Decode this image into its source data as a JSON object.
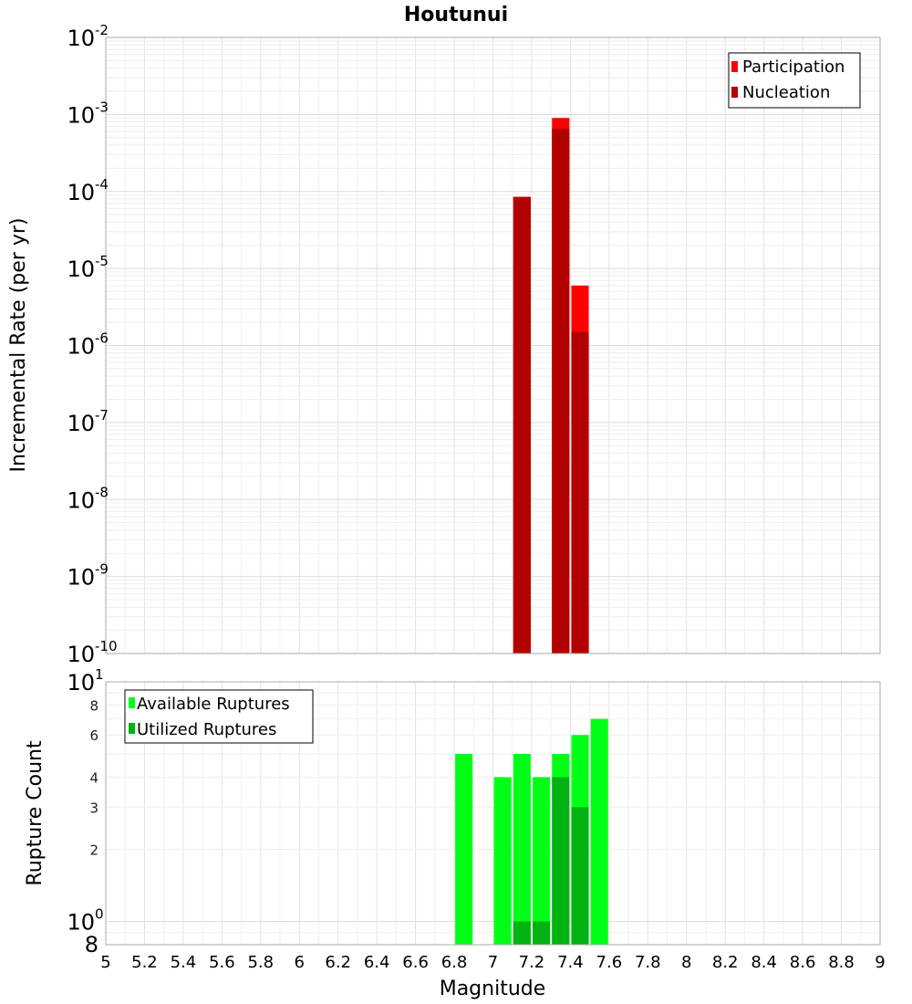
{
  "title": "Houtunui",
  "chart_data": [
    {
      "type": "bar",
      "name": "rate-panel",
      "ylabel": "Incremental Rate (per yr)",
      "yscale": "log",
      "ylim": [
        1e-10,
        0.01
      ],
      "y_tick_base": "10",
      "y_tick_exponents": [
        "-10",
        "-9",
        "-8",
        "-7",
        "-6",
        "-5",
        "-4",
        "-3",
        "-2"
      ],
      "legend_position": "top-right",
      "grid": true,
      "bar_width": 0.09,
      "series": [
        {
          "name": "Participation",
          "color": "#ff0000",
          "points": [
            {
              "x": 7.15,
              "y": 8.5e-05
            },
            {
              "x": 7.35,
              "y": 0.0009
            },
            {
              "x": 7.45,
              "y": 6e-06
            }
          ]
        },
        {
          "name": "Nucleation",
          "color": "#b30000",
          "points": [
            {
              "x": 7.15,
              "y": 8.5e-05
            },
            {
              "x": 7.35,
              "y": 0.00065
            },
            {
              "x": 7.45,
              "y": 1.5e-06
            }
          ]
        }
      ]
    },
    {
      "type": "bar",
      "name": "count-panel",
      "ylabel": "Rupture Count",
      "xlabel": "Magnitude",
      "yscale": "log",
      "ylim": [
        0.8,
        10
      ],
      "y_major_ticks": [
        {
          "value": 1,
          "base": "10",
          "exp": "0"
        },
        {
          "value": 10,
          "base": "10",
          "exp": "1"
        }
      ],
      "y_minor_ticks": [
        {
          "value": 0.8,
          "label": "8"
        },
        {
          "value": 2,
          "label": "2"
        },
        {
          "value": 3,
          "label": "3"
        },
        {
          "value": 4,
          "label": "4"
        },
        {
          "value": 6,
          "label": "6"
        },
        {
          "value": 8,
          "label": "8"
        }
      ],
      "xlim": [
        5,
        9
      ],
      "x_ticks": [
        "5",
        "5.2",
        "5.4",
        "5.6",
        "5.8",
        "6",
        "6.2",
        "6.4",
        "6.6",
        "6.8",
        "7",
        "7.2",
        "7.4",
        "7.6",
        "7.8",
        "8",
        "8.2",
        "8.4",
        "8.6",
        "8.8",
        "9"
      ],
      "legend_position": "top-left",
      "grid": true,
      "bar_width": 0.09,
      "series": [
        {
          "name": "Available Ruptures",
          "color": "#00ff16",
          "points": [
            {
              "x": 6.85,
              "y": 5
            },
            {
              "x": 7.05,
              "y": 4
            },
            {
              "x": 7.15,
              "y": 5
            },
            {
              "x": 7.25,
              "y": 4
            },
            {
              "x": 7.35,
              "y": 5
            },
            {
              "x": 7.45,
              "y": 6
            },
            {
              "x": 7.55,
              "y": 7
            }
          ]
        },
        {
          "name": "Utilized Ruptures",
          "color": "#00b312",
          "points": [
            {
              "x": 7.15,
              "y": 1
            },
            {
              "x": 7.25,
              "y": 1
            },
            {
              "x": 7.35,
              "y": 4
            },
            {
              "x": 7.45,
              "y": 3
            }
          ]
        }
      ]
    }
  ]
}
